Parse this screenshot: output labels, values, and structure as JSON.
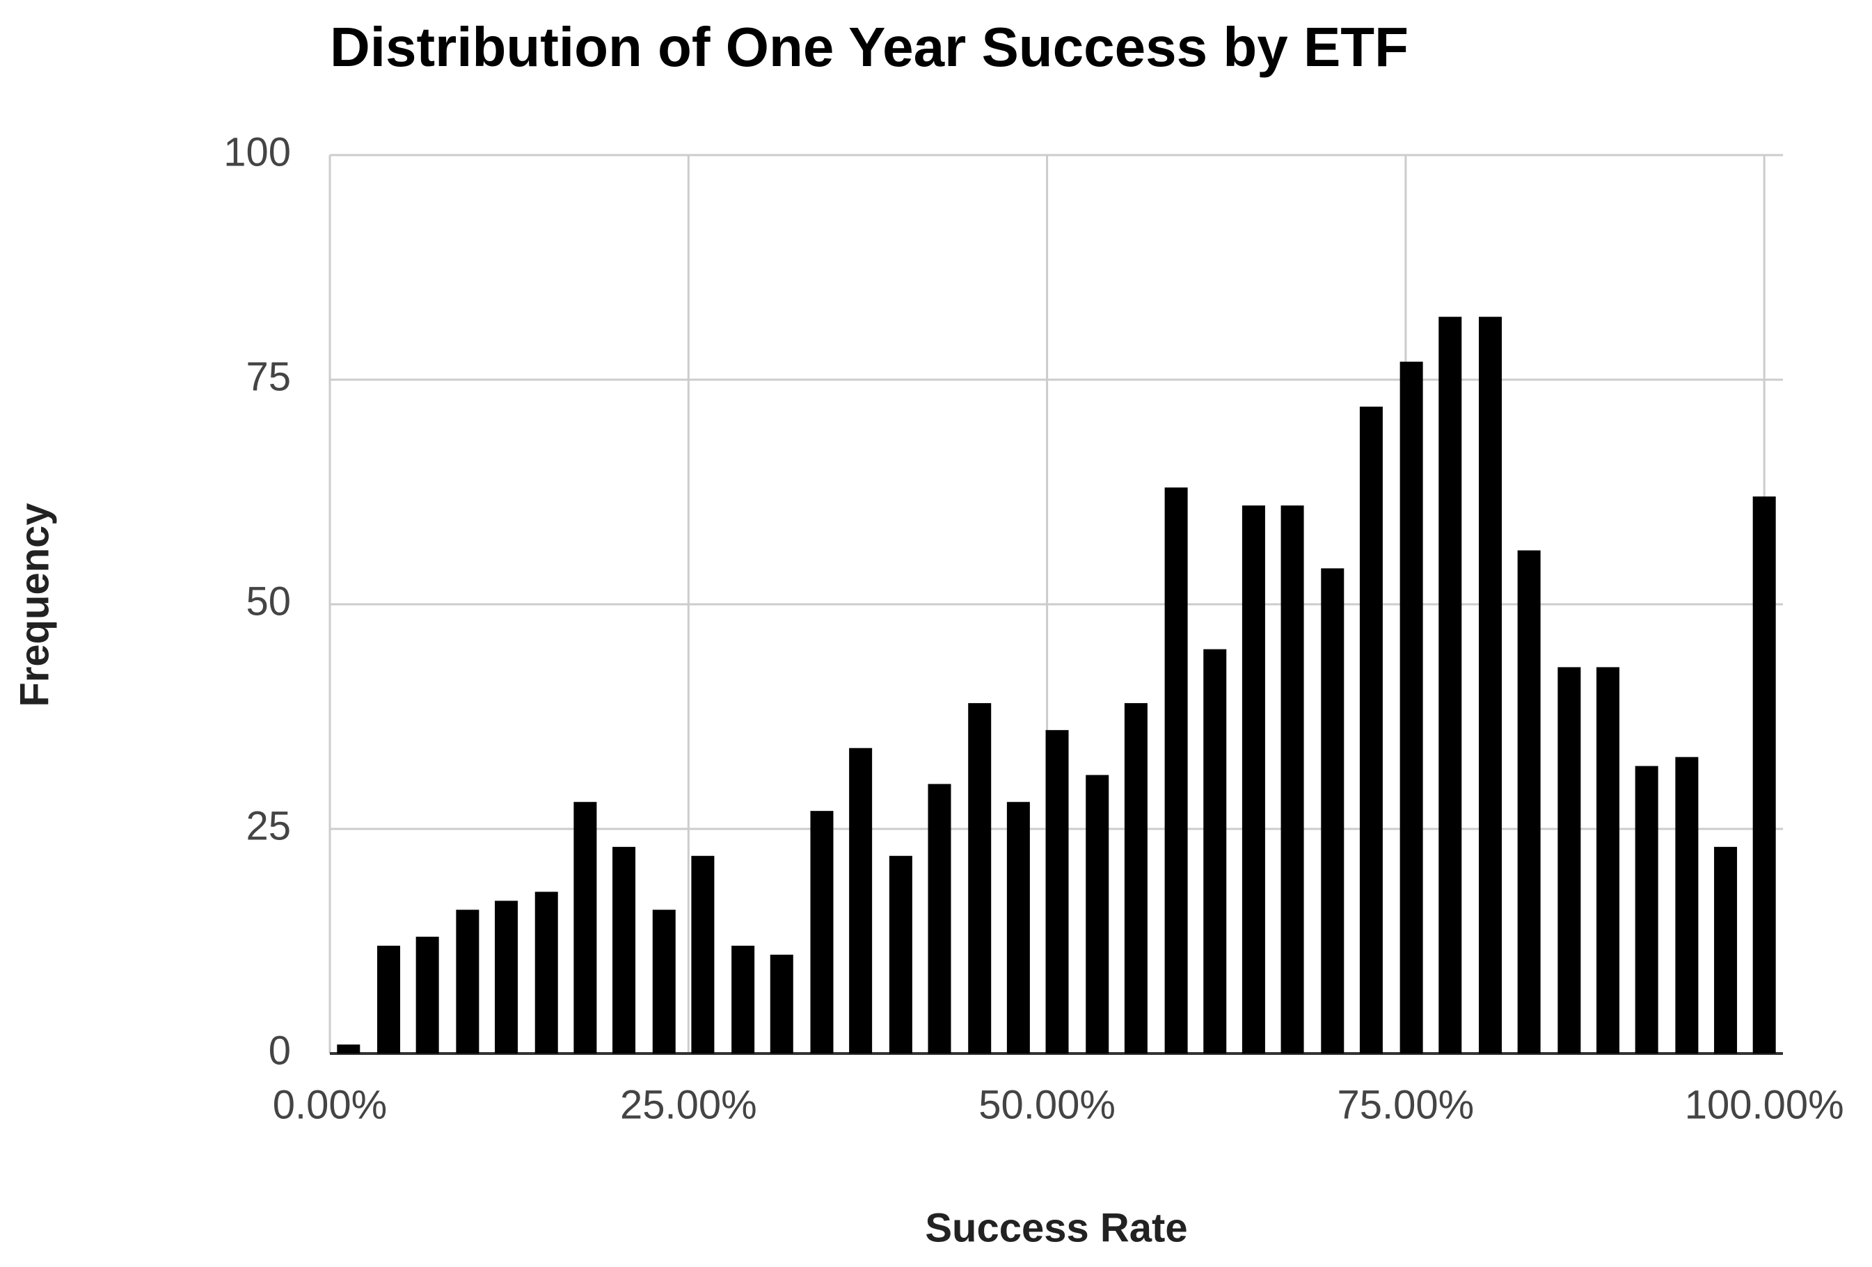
{
  "chart_data": {
    "type": "bar",
    "title": "Distribution of One Year Success by ETF",
    "x_label": "Success Rate",
    "y_label": "Frequency",
    "x": [
      1.3,
      4.1,
      6.8,
      9.6,
      12.3,
      15.1,
      17.8,
      20.5,
      23.3,
      26.0,
      28.8,
      31.5,
      34.3,
      37.0,
      39.8,
      42.5,
      45.3,
      48.0,
      50.7,
      53.5,
      56.2,
      59.0,
      61.7,
      64.4,
      67.1,
      69.9,
      72.6,
      75.4,
      78.1,
      80.9,
      83.6,
      86.4,
      89.1,
      91.8,
      94.6,
      97.3,
      100.0
    ],
    "values": [
      1,
      12,
      13,
      16,
      17,
      18,
      28,
      23,
      16,
      22,
      12,
      11,
      27,
      34,
      22,
      30,
      39,
      28,
      36,
      31,
      39,
      63,
      45,
      61,
      61,
      54,
      72,
      77,
      82,
      82,
      56,
      43,
      43,
      32,
      33,
      23,
      62
    ],
    "color": "#000000",
    "xlim": [
      0,
      101.3
    ],
    "xticks": [
      {
        "value": 0,
        "label": "0.00%"
      },
      {
        "value": 25,
        "label": "25.00%"
      },
      {
        "value": 50,
        "label": "50.00%"
      },
      {
        "value": 75,
        "label": "75.00%"
      },
      {
        "value": 100,
        "label": "100.00%"
      }
    ],
    "ylim": [
      0,
      100
    ],
    "yticks": [
      0,
      25,
      50,
      75,
      100
    ],
    "grid": true
  }
}
